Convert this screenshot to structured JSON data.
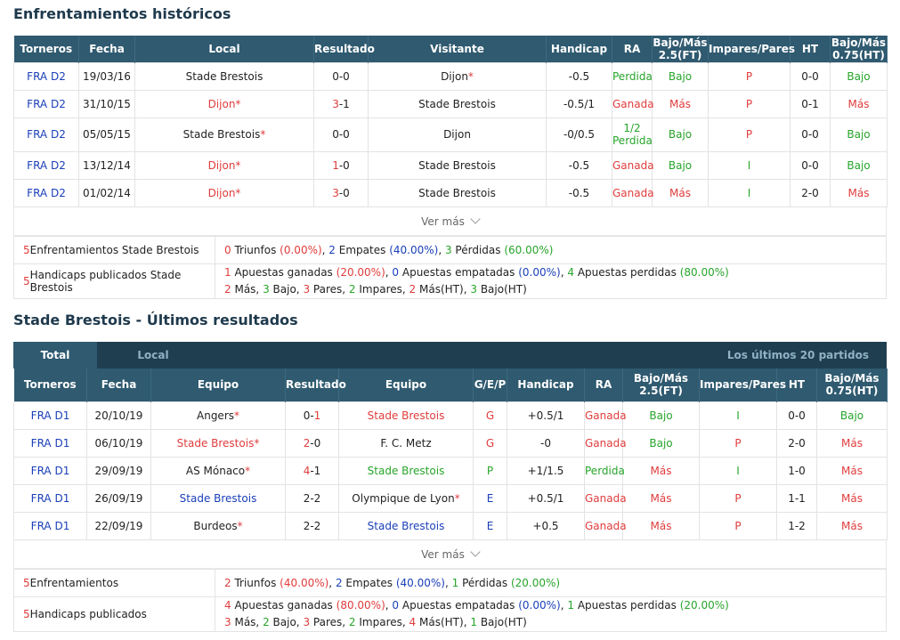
{
  "h2h": {
    "title": "Enfrentamientos históricos",
    "headers": [
      "Torneros",
      "Fecha",
      "Local",
      "Resultado",
      "Visitante",
      "Handicap",
      "RA",
      "Bajo/Más 2.5(FT)",
      "Impares/Pares",
      "HT",
      "Bajo/Más 0.75(HT)"
    ],
    "rows": [
      {
        "league": "FRA D2",
        "date": "19/03/16",
        "home": "Stade Brestois",
        "home_star": "",
        "score_home": "0",
        "score_away": "0",
        "away": "Dijon",
        "away_star": "*",
        "handicap": "-0.5",
        "ra": "Perdida",
        "ou": "Bajo",
        "oe": "P",
        "ht": "0-0",
        "ou_ht": "Bajo"
      },
      {
        "league": "FRA D2",
        "date": "31/10/15",
        "home": "Dijon",
        "home_star": "*",
        "score_home": "3",
        "score_away": "1",
        "away": "Stade Brestois",
        "away_star": "",
        "handicap": "-0.5/1",
        "ra": "Ganada",
        "ou": "Más",
        "oe": "P",
        "ht": "0-1",
        "ou_ht": "Más"
      },
      {
        "league": "FRA D2",
        "date": "05/05/15",
        "home": "Stade Brestois",
        "home_star": "*",
        "score_home": "0",
        "score_away": "0",
        "away": "Dijon",
        "away_star": "",
        "handicap": "-0/0.5",
        "ra": "1/2 Perdida",
        "ou": "Bajo",
        "oe": "P",
        "ht": "0-0",
        "ou_ht": "Bajo"
      },
      {
        "league": "FRA D2",
        "date": "13/12/14",
        "home": "Dijon",
        "home_star": "*",
        "score_home": "1",
        "score_away": "0",
        "away": "Stade Brestois",
        "away_star": "",
        "handicap": "-0.5",
        "ra": "Ganada",
        "ou": "Bajo",
        "oe": "I",
        "ht": "0-0",
        "ou_ht": "Bajo"
      },
      {
        "league": "FRA D2",
        "date": "01/02/14",
        "home": "Dijon",
        "home_star": "*",
        "score_home": "3",
        "score_away": "0",
        "away": "Stade Brestois",
        "away_star": "",
        "handicap": "-0.5",
        "ra": "Ganada",
        "ou": "Más",
        "oe": "I",
        "ht": "2-0",
        "ou_ht": "Más"
      }
    ],
    "more": "Ver más",
    "summary": {
      "label1": "Enfrentamientos Stade Brestois",
      "count1": "5",
      "wins": "0",
      "wins_label": "Triunfos",
      "wins_pct": "(0.00%)",
      "draws": "2",
      "draws_label": "Empates",
      "draws_pct": "(40.00%)",
      "losses": "3",
      "losses_label": "Pérdidas",
      "losses_pct": "(60.00%)",
      "label2": "Handicaps publicados Stade Brestois",
      "count2": "5",
      "bw": "1",
      "bw_label": "Apuestas ganadas",
      "bw_pct": "(20.00%)",
      "bd": "0",
      "bd_label": "Apuestas empatadas",
      "bd_pct": "(0.00%)",
      "bl": "4",
      "bl_label": "Apuestas perdidas",
      "bl_pct": "(80.00%)",
      "mas": "2",
      "mas_label": "Más,",
      "bajo": "3",
      "bajo_label": "Bajo,",
      "pares": "3",
      "pares_label": "Pares,",
      "impares": "2",
      "impares_label": "Impares,",
      "masht": "2",
      "masht_label": "Más(HT),",
      "bajoht": "3",
      "bajoht_label": "Bajo(HT)"
    }
  },
  "recent": {
    "title": "Stade Brestois - Últimos resultados",
    "tabs": [
      "Total",
      "Local"
    ],
    "note": "Los últimos 20 partidos",
    "headers": [
      "Torneros",
      "Fecha",
      "Equipo",
      "Resultado",
      "Equipo",
      "G/E/P",
      "Handicap",
      "RA",
      "Bajo/Más 2.5(FT)",
      "Impares/Pares",
      "HT",
      "Bajo/Más 0.75(HT)"
    ],
    "rows": [
      {
        "league": "FRA D1",
        "date": "20/10/19",
        "home": "Angers",
        "home_star": "*",
        "home_color": "dark",
        "score_home": "0",
        "score_away": "1",
        "away": "Stade Brestois",
        "away_star": "",
        "away_color": "red",
        "gep": "G",
        "handicap": "+0.5/1",
        "ra": "Ganada",
        "ou": "Bajo",
        "oe": "I",
        "ht": "0-0",
        "ou_ht": "Bajo"
      },
      {
        "league": "FRA D1",
        "date": "06/10/19",
        "home": "Stade Brestois",
        "home_star": "*",
        "home_color": "red",
        "score_home": "2",
        "score_away": "0",
        "away": "F. C. Metz",
        "away_star": "",
        "away_color": "dark",
        "gep": "G",
        "handicap": "-0",
        "ra": "Ganada",
        "ou": "Bajo",
        "oe": "P",
        "ht": "2-0",
        "ou_ht": "Más"
      },
      {
        "league": "FRA D1",
        "date": "29/09/19",
        "home": "AS Mónaco",
        "home_star": "*",
        "home_color": "dark",
        "score_home": "4",
        "score_away": "1",
        "away": "Stade Brestois",
        "away_star": "",
        "away_color": "green",
        "gep": "P",
        "handicap": "+1/1.5",
        "ra": "Perdida",
        "ou": "Más",
        "oe": "I",
        "ht": "1-0",
        "ou_ht": "Más"
      },
      {
        "league": "FRA D1",
        "date": "26/09/19",
        "home": "Stade Brestois",
        "home_star": "",
        "home_color": "blue",
        "score_home": "2",
        "score_away": "2",
        "away": "Olympique de Lyon",
        "away_star": "*",
        "away_color": "dark",
        "gep": "E",
        "handicap": "+0.5/1",
        "ra": "Ganada",
        "ou": "Más",
        "oe": "P",
        "ht": "1-1",
        "ou_ht": "Más"
      },
      {
        "league": "FRA D1",
        "date": "22/09/19",
        "home": "Burdeos",
        "home_star": "*",
        "home_color": "dark",
        "score_home": "2",
        "score_away": "2",
        "away": "Stade Brestois",
        "away_star": "",
        "away_color": "blue",
        "gep": "E",
        "handicap": "+0.5",
        "ra": "Ganada",
        "ou": "Más",
        "oe": "P",
        "ht": "1-2",
        "ou_ht": "Más"
      }
    ],
    "more": "Ver más",
    "summary": {
      "label1": "Enfrentamientos",
      "count1": "5",
      "wins": "2",
      "wins_label": "Triunfos",
      "wins_pct": "(40.00%)",
      "draws": "2",
      "draws_label": "Empates",
      "draws_pct": "(40.00%)",
      "losses": "1",
      "losses_label": "Pérdidas",
      "losses_pct": "(20.00%)",
      "label2": "Handicaps publicados",
      "count2": "5",
      "bw": "4",
      "bw_label": "Apuestas ganadas",
      "bw_pct": "(80.00%)",
      "bd": "0",
      "bd_label": "Apuestas empatadas",
      "bd_pct": "(0.00%)",
      "bl": "1",
      "bl_label": "Apuestas perdidas",
      "bl_pct": "(20.00%)",
      "mas": "3",
      "mas_label": "Más,",
      "bajo": "2",
      "bajo_label": "Bajo,",
      "pares": "3",
      "pares_label": "Pares,",
      "impares": "2",
      "impares_label": "Impares,",
      "masht": "4",
      "masht_label": "Más(HT),",
      "bajoht": "1",
      "bajoht_label": "Bajo(HT)"
    }
  },
  "colors": {
    "header_bg": "#2f5a70",
    "win": "#e03c3c",
    "draw": "#2a8de0",
    "loss": "#27a52a",
    "league": "#1a3fb8"
  }
}
